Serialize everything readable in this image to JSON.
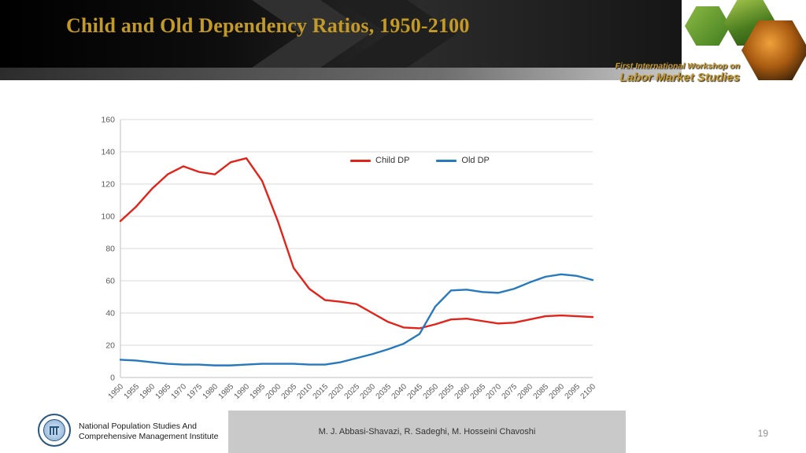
{
  "header": {
    "title": "Child and Old Dependency Ratios, 1950-2100",
    "workshop_line1": "First International Workshop on",
    "workshop_line2": "Labor Market Studies"
  },
  "chart_data": {
    "type": "line",
    "title": "",
    "xlabel": "",
    "ylabel": "",
    "ylim": [
      0,
      160
    ],
    "ytick_step": 20,
    "grid": true,
    "legend_position": "top-center-inside",
    "x": [
      1950,
      1955,
      1960,
      1965,
      1970,
      1975,
      1980,
      1985,
      1990,
      1995,
      2000,
      2005,
      2010,
      2015,
      2020,
      2025,
      2030,
      2035,
      2040,
      2045,
      2050,
      2055,
      2060,
      2065,
      2070,
      2075,
      2080,
      2085,
      2090,
      2095,
      2100
    ],
    "series": [
      {
        "name": "Child DP",
        "color": "#e2231a",
        "values": [
          97,
          106,
          117,
          126,
          131,
          127.5,
          126,
          133.5,
          136,
          122,
          97,
          68,
          55,
          48,
          47,
          45.5,
          40,
          34.5,
          31,
          30.5,
          33,
          36,
          36.5,
          35,
          33.5,
          34,
          36,
          38,
          38.5,
          38,
          37.5
        ]
      },
      {
        "name": "Old DP",
        "color": "#2779bd",
        "values": [
          11,
          10.5,
          9.5,
          8.5,
          8,
          8,
          7.5,
          7.5,
          8,
          8.5,
          8.5,
          8.5,
          8,
          8,
          9.5,
          12,
          14.5,
          17.5,
          21,
          27,
          44,
          54,
          54.5,
          53,
          52.5,
          55,
          59,
          62.5,
          64,
          63,
          60.5
        ]
      }
    ]
  },
  "footer": {
    "institute_line1": "National Population Studies And",
    "institute_line2": "Comprehensive Management Institute",
    "authors": "M. J. Abbasi-Shavazi, R. Sadeghi, M. Hosseini Chavoshi",
    "page_number": "19"
  }
}
